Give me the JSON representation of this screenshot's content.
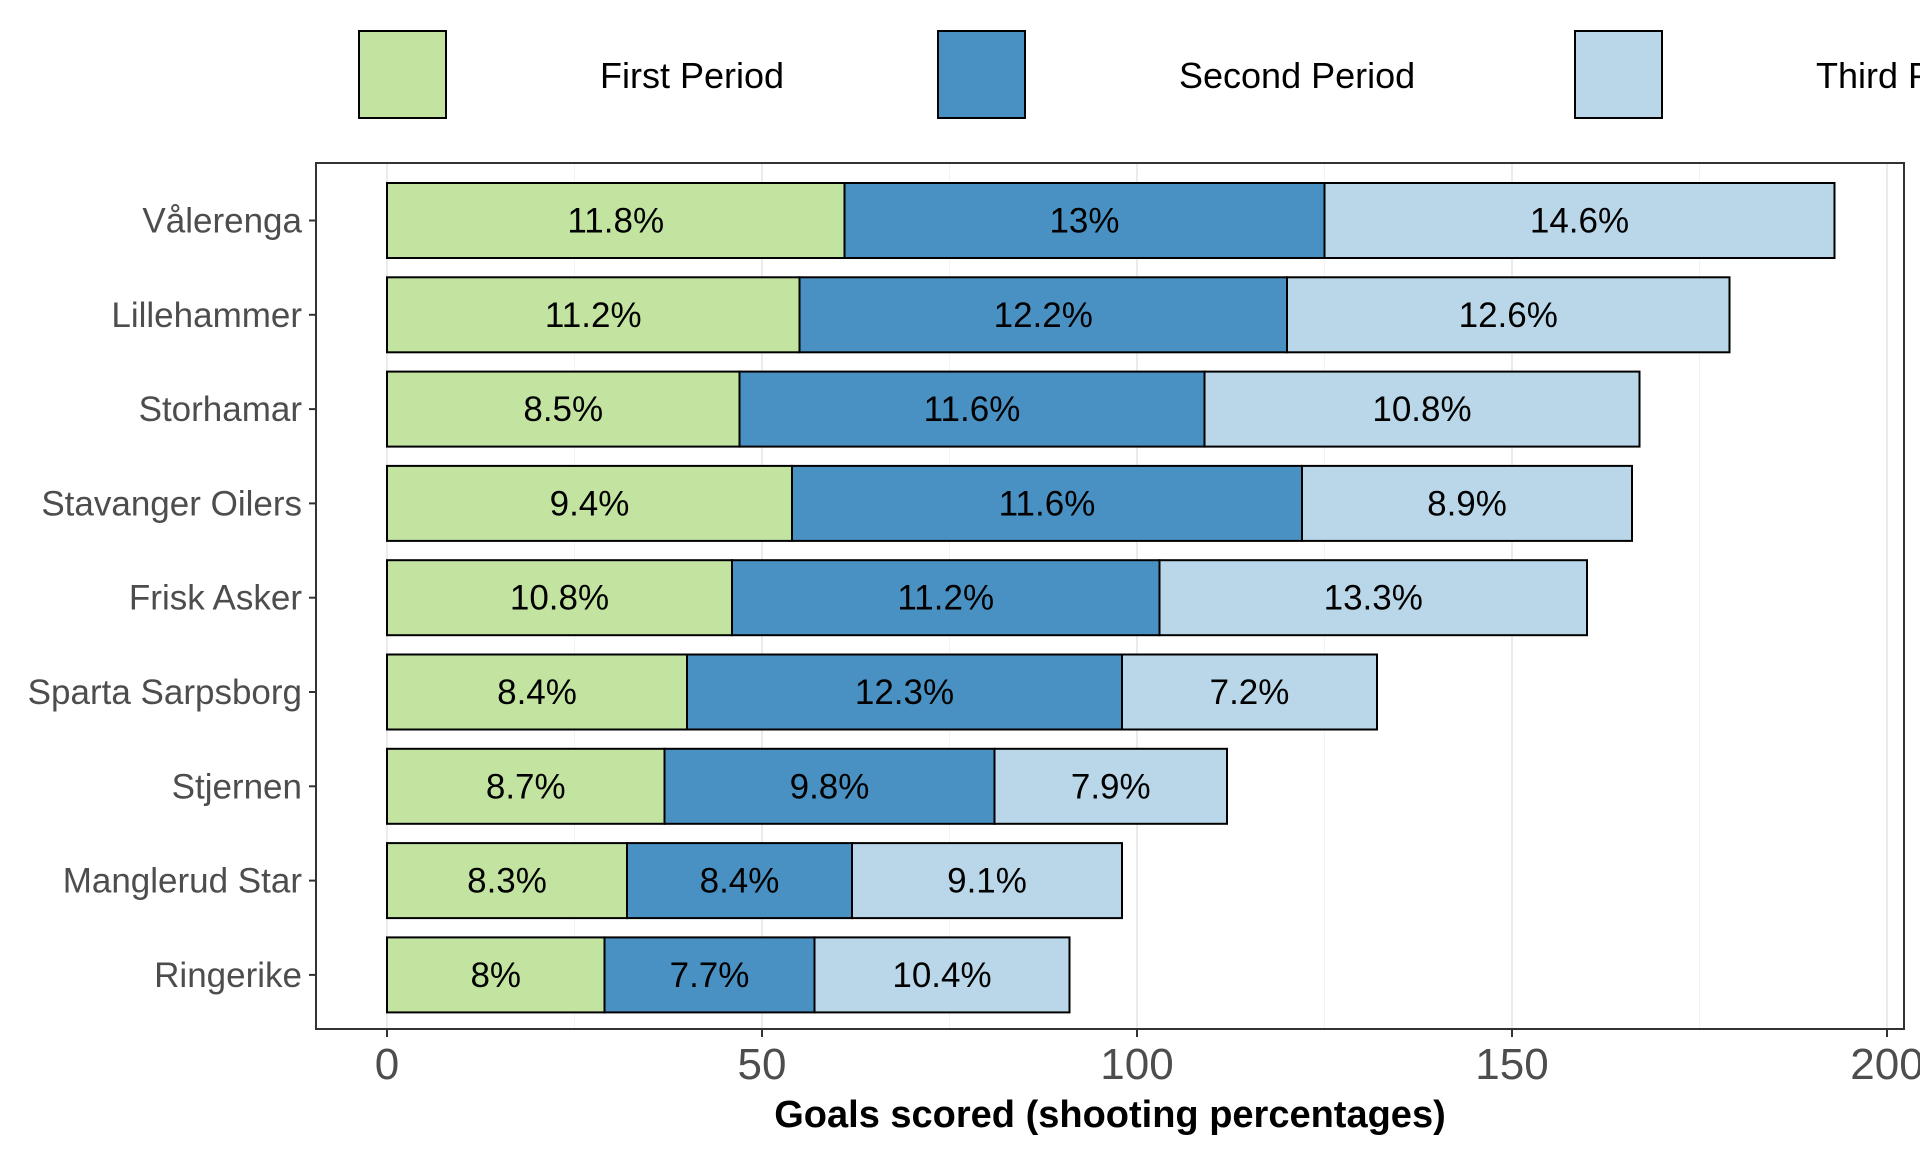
{
  "chart_data": {
    "type": "bar",
    "orientation": "horizontal",
    "stacked": true,
    "xlabel": "Goals scored (shooting percentages)",
    "ylabel": "",
    "xlim": [
      0,
      200
    ],
    "xticks": [
      "0",
      "50",
      "100",
      "150",
      "200"
    ],
    "grid": true,
    "legend_position": "top",
    "categories": [
      "Vålerenga",
      "Lillehammer",
      "Storhamar",
      "Stavanger Oilers",
      "Frisk Asker",
      "Sparta Sarpsborg",
      "Stjernen",
      "Manglerud Star",
      "Ringerike"
    ],
    "series": [
      {
        "name": "First Period",
        "color": "#c3e4a0",
        "values": [
          61,
          55,
          47,
          54,
          46,
          40,
          37,
          32,
          29
        ],
        "labels": [
          "11.8%",
          "11.2%",
          "8.5%",
          "9.4%",
          "10.8%",
          "8.4%",
          "8.7%",
          "8.3%",
          "8%"
        ]
      },
      {
        "name": "Second Period",
        "color": "#4a91c3",
        "values": [
          64,
          65,
          62,
          68,
          57,
          58,
          44,
          30,
          28
        ],
        "labels": [
          "13%",
          "12.2%",
          "11.6%",
          "11.6%",
          "11.2%",
          "12.3%",
          "9.8%",
          "8.4%",
          "7.7%"
        ]
      },
      {
        "name": "Third Period",
        "color": "#b9d7e9",
        "values": [
          68,
          59,
          58,
          44,
          57,
          34,
          31,
          36,
          34
        ],
        "labels": [
          "14.6%",
          "12.6%",
          "10.8%",
          "8.9%",
          "13.3%",
          "7.2%",
          "7.9%",
          "9.1%",
          "10.4%"
        ]
      }
    ]
  }
}
